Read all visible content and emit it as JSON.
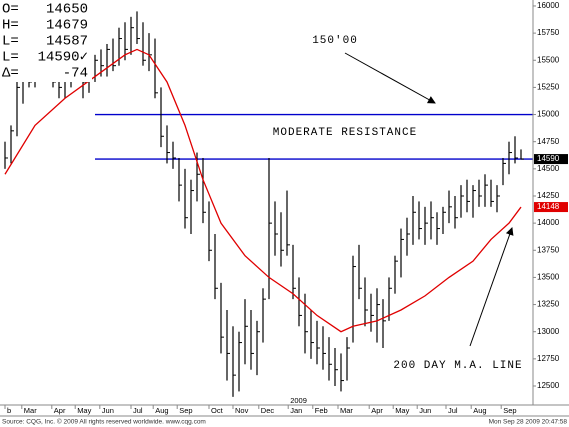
{
  "chart_data": {
    "type": "hlc",
    "info_box": [
      {
        "label": "O=",
        "value": "14650"
      },
      {
        "label": "H=",
        "value": "14679"
      },
      {
        "label": "L=",
        "value": "14587"
      },
      {
        "label": "L=",
        "value": "14590✓"
      },
      {
        "label": "Δ=",
        "value": "-74"
      }
    ],
    "x": [
      0,
      1,
      2,
      3,
      4,
      5,
      6,
      7,
      8,
      9,
      10,
      11,
      12,
      13,
      14,
      15,
      16,
      17,
      18,
      19,
      20,
      21,
      22,
      23,
      24,
      25,
      26,
      27,
      28,
      29,
      30,
      31,
      32,
      33,
      34,
      35,
      36,
      37,
      38,
      39,
      40,
      41,
      42,
      43,
      44,
      45,
      46,
      47,
      48,
      49,
      50,
      51,
      52,
      53,
      54,
      55,
      56,
      57,
      58,
      59,
      60,
      61,
      62,
      63,
      64,
      65,
      66,
      67,
      68,
      69,
      70,
      71,
      72,
      73,
      74,
      75,
      76,
      77,
      78,
      79,
      80,
      81,
      82,
      83,
      84,
      85,
      86
    ],
    "high": [
      14750,
      14900,
      15300,
      15400,
      15450,
      15500,
      15550,
      15600,
      15500,
      15450,
      15400,
      15500,
      15550,
      15400,
      15450,
      15550,
      15600,
      15650,
      15700,
      15800,
      15850,
      15900,
      15950,
      15850,
      15750,
      15700,
      15250,
      14900,
      14750,
      14600,
      14500,
      14400,
      14650,
      14600,
      14200,
      13900,
      13450,
      13200,
      13050,
      13000,
      13300,
      13200,
      13100,
      13400,
      14600,
      14200,
      14100,
      14300,
      13800,
      13500,
      13350,
      13200,
      13100,
      13050,
      12950,
      12850,
      12800,
      12950,
      13700,
      13800,
      13500,
      13350,
      13400,
      13300,
      13500,
      13700,
      13950,
      14050,
      14250,
      14200,
      14150,
      14200,
      14100,
      14150,
      14300,
      14250,
      14350,
      14400,
      14350,
      14400,
      14450,
      14400,
      14350,
      14600,
      14750,
      14800,
      14679
    ],
    "low": [
      14500,
      14550,
      14800,
      15100,
      15250,
      15250,
      15300,
      15350,
      15250,
      15150,
      15150,
      15250,
      15300,
      15150,
      15200,
      15300,
      15350,
      15350,
      15400,
      15450,
      15500,
      15550,
      15650,
      15450,
      15400,
      15150,
      14700,
      14550,
      14500,
      14200,
      13950,
      13900,
      14200,
      14000,
      13650,
      13300,
      12800,
      12550,
      12400,
      12450,
      12700,
      12650,
      12600,
      12900,
      13300,
      13700,
      13600,
      13700,
      13300,
      13050,
      12800,
      12750,
      12700,
      12650,
      12550,
      12500,
      12450,
      12550,
      12900,
      13300,
      13050,
      13000,
      12900,
      12850,
      13100,
      13350,
      13500,
      13700,
      13800,
      13850,
      13800,
      13850,
      13800,
      13900,
      14000,
      13950,
      14050,
      14100,
      14050,
      14150,
      14150,
      14150,
      14100,
      14350,
      14450,
      14550,
      14587
    ],
    "close": [
      14600,
      14850,
      15250,
      15350,
      15300,
      15450,
      15500,
      15400,
      15300,
      15250,
      15350,
      15450,
      15350,
      15300,
      15400,
      15500,
      15450,
      15600,
      15450,
      15700,
      15600,
      15800,
      15700,
      15500,
      15550,
      15200,
      14800,
      14650,
      14600,
      14350,
      14050,
      14300,
      14450,
      14100,
      13750,
      13400,
      12950,
      12800,
      12600,
      12900,
      13050,
      12800,
      13000,
      13300,
      14000,
      13900,
      13750,
      13800,
      13400,
      13150,
      13000,
      12900,
      12850,
      12800,
      12700,
      12650,
      12550,
      12850,
      13600,
      13400,
      13200,
      13150,
      13250,
      13100,
      13400,
      13650,
      13850,
      13900,
      14100,
      13950,
      14000,
      14050,
      13950,
      14100,
      14150,
      14050,
      14250,
      14200,
      14300,
      14250,
      14350,
      14200,
      14250,
      14550,
      14650,
      14600,
      14590
    ],
    "bar_color": "#000000",
    "ma": {
      "color": "#e00000",
      "x": [
        0,
        5,
        10,
        15,
        20,
        22,
        24,
        27,
        30,
        33,
        36,
        40,
        44,
        48,
        52,
        56,
        58,
        62,
        66,
        70,
        74,
        78,
        81,
        84,
        86
      ],
      "values": [
        14450,
        14900,
        15150,
        15350,
        15550,
        15600,
        15550,
        15300,
        14900,
        14400,
        14000,
        13700,
        13500,
        13350,
        13150,
        13000,
        13050,
        13100,
        13200,
        13330,
        13500,
        13650,
        13850,
        14000,
        14148
      ]
    },
    "resistance": [
      15000,
      14590
    ],
    "resistance_color": "#0000cc",
    "last_price": 14590,
    "ma_last": 14148,
    "annotations": [
      "150'00",
      "MODERATE RESISTANCE",
      "200 DAY M.A. LINE"
    ],
    "xlim": [
      0,
      88
    ],
    "ylim": [
      12325,
      16055
    ],
    "yticks": [
      12500,
      12750,
      13000,
      13250,
      13500,
      13750,
      14000,
      14250,
      14500,
      14750,
      15000,
      15250,
      15500,
      15750,
      16000
    ],
    "xticks": [
      {
        "value": 0,
        "label": "b"
      },
      {
        "value": 2.8,
        "label": "Mar"
      },
      {
        "value": 7.8,
        "label": "Apr"
      },
      {
        "value": 11.7,
        "label": "May"
      },
      {
        "value": 15.8,
        "label": "Jun"
      },
      {
        "value": 21,
        "label": "Jul"
      },
      {
        "value": 24.7,
        "label": "Aug"
      },
      {
        "value": 28.7,
        "label": "Sep"
      },
      {
        "value": 34,
        "label": "Oct"
      },
      {
        "value": 38,
        "label": "Nov"
      },
      {
        "value": 42.3,
        "label": "Dec"
      },
      {
        "value": 47.2,
        "label": "Jan"
      },
      {
        "value": 51.3,
        "label": "Feb"
      },
      {
        "value": 55.5,
        "label": "Mar"
      },
      {
        "value": 60.7,
        "label": "Apr"
      },
      {
        "value": 64.7,
        "label": "May"
      },
      {
        "value": 68.7,
        "label": "Jun"
      },
      {
        "value": 73.5,
        "label": "Jul"
      },
      {
        "value": 77.7,
        "label": "Aug"
      },
      {
        "value": 82.7,
        "label": "Sep"
      }
    ],
    "year_label": "2009",
    "source": "Source: CQG, Inc. © 2009 All rights reserved worldwide. www.cqg.com",
    "timestamp": "Mon Sep 28 2009 20:47:58"
  }
}
